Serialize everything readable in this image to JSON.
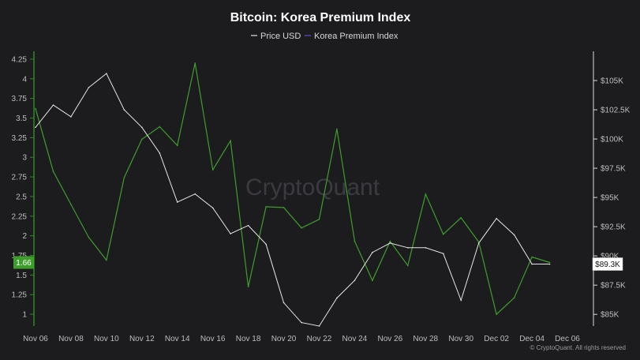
{
  "chart_data": {
    "type": "line",
    "title": "Bitcoin: Korea Premium Index",
    "x_labels": [
      "Nov 06",
      "Nov 08",
      "Nov 10",
      "Nov 12",
      "Nov 14",
      "Nov 16",
      "Nov 18",
      "Nov 20",
      "Nov 22",
      "Nov 24",
      "Nov 26",
      "Nov 28",
      "Nov 30",
      "Dec 02",
      "Dec 04",
      "Dec 06"
    ],
    "x_dates": [
      "2024-11-06",
      "2024-11-08",
      "2024-11-10",
      "2024-11-12",
      "2024-11-14",
      "2024-11-16",
      "2024-11-18",
      "2024-11-20",
      "2024-11-22",
      "2024-11-24",
      "2024-11-26",
      "2024-11-28",
      "2024-11-30",
      "2024-12-02",
      "2024-12-04",
      "2024-12-06"
    ],
    "xlim": [
      "2024-11-06",
      "2024-12-06"
    ],
    "left_axis": {
      "ticks": [
        "4.25",
        "4",
        "3.75",
        "3.5",
        "3.25",
        "3",
        "2.75",
        "2.5",
        "2.25",
        "2",
        "1.75",
        "1.5",
        "1.25",
        "1"
      ],
      "range": [
        0.85,
        4.35
      ]
    },
    "right_axis": {
      "ticks": [
        "$105K",
        "$102.5K",
        "$100K",
        "$97.5K",
        "$95K",
        "$92.5K",
        "$90K",
        "$87.5K",
        "$85K"
      ],
      "range": [
        84000,
        107500
      ]
    },
    "series": [
      {
        "name": "Price USD",
        "axis": "right",
        "color": "#e6e6e6",
        "x": [
          "2024-11-06",
          "2024-11-07",
          "2024-11-08",
          "2024-11-09",
          "2024-11-10",
          "2024-11-11",
          "2024-11-12",
          "2024-11-13",
          "2024-11-14",
          "2024-11-15",
          "2024-11-16",
          "2024-11-17",
          "2024-11-18",
          "2024-11-19",
          "2024-11-20",
          "2024-11-21",
          "2024-11-22",
          "2024-11-23",
          "2024-11-24",
          "2024-11-25",
          "2024-11-26",
          "2024-11-27",
          "2024-11-28",
          "2024-11-29",
          "2024-11-30",
          "2024-12-01",
          "2024-12-02",
          "2024-12-03",
          "2024-12-04",
          "2024-12-05"
        ],
        "values": [
          101000,
          102900,
          101900,
          104400,
          105600,
          102500,
          101000,
          98800,
          94600,
          95300,
          94100,
          91900,
          92600,
          91000,
          86000,
          84300,
          84000,
          86400,
          87900,
          90300,
          91100,
          90700,
          90700,
          90200,
          86200,
          91100,
          93200,
          91800,
          89300,
          89300
        ]
      },
      {
        "name": "Korea Premium Index",
        "axis": "left",
        "color": "#3e9e2c",
        "x": [
          "2024-11-06",
          "2024-11-07",
          "2024-11-08",
          "2024-11-09",
          "2024-11-10",
          "2024-11-11",
          "2024-11-12",
          "2024-11-13",
          "2024-11-14",
          "2024-11-15",
          "2024-11-16",
          "2024-11-17",
          "2024-11-18",
          "2024-11-19",
          "2024-11-20",
          "2024-11-21",
          "2024-11-22",
          "2024-11-23",
          "2024-11-24",
          "2024-11-25",
          "2024-11-26",
          "2024-11-27",
          "2024-11-28",
          "2024-11-29",
          "2024-11-30",
          "2024-12-01",
          "2024-12-02",
          "2024-12-03",
          "2024-12-04",
          "2024-12-05"
        ],
        "values": [
          3.62,
          2.82,
          2.4,
          1.98,
          1.69,
          2.74,
          3.23,
          3.39,
          3.15,
          4.2,
          2.84,
          3.21,
          1.35,
          2.37,
          2.36,
          2.1,
          2.21,
          3.36,
          1.93,
          1.43,
          1.93,
          1.62,
          2.53,
          2.02,
          2.23,
          1.92,
          1.0,
          1.21,
          1.73,
          1.66
        ]
      }
    ],
    "current_values": {
      "left": "1.66",
      "right": "$89.3K"
    },
    "legend": {
      "placement": "top-center"
    },
    "grid": false,
    "watermark": "CryptoQuant",
    "footer": "© CryptoQuant. All rights reserved"
  }
}
